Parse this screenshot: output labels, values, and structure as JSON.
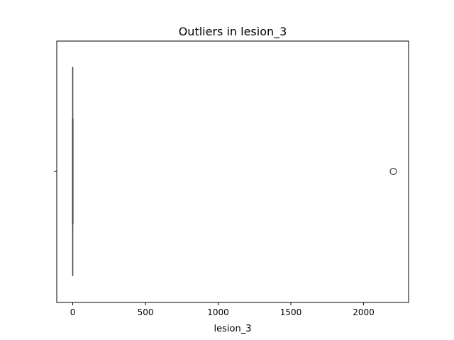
{
  "chart_data": {
    "type": "box",
    "title": "Outliers in lesion_3",
    "xlabel": "lesion_3",
    "ylabel": "",
    "xlim": [
      -110,
      2310
    ],
    "xticks": [
      0,
      500,
      1000,
      1500,
      2000
    ],
    "tick_labels": [
      "0",
      "500",
      "1000",
      "1500",
      "2000"
    ],
    "box": {
      "min": 0,
      "q1": 0,
      "median": 0,
      "q3": 0,
      "max": 0
    },
    "outliers": [
      2205
    ],
    "colors": {
      "box_line": "#3f3f3f",
      "outlier_edge": "#3f3f3f",
      "frame": "#000000"
    }
  }
}
